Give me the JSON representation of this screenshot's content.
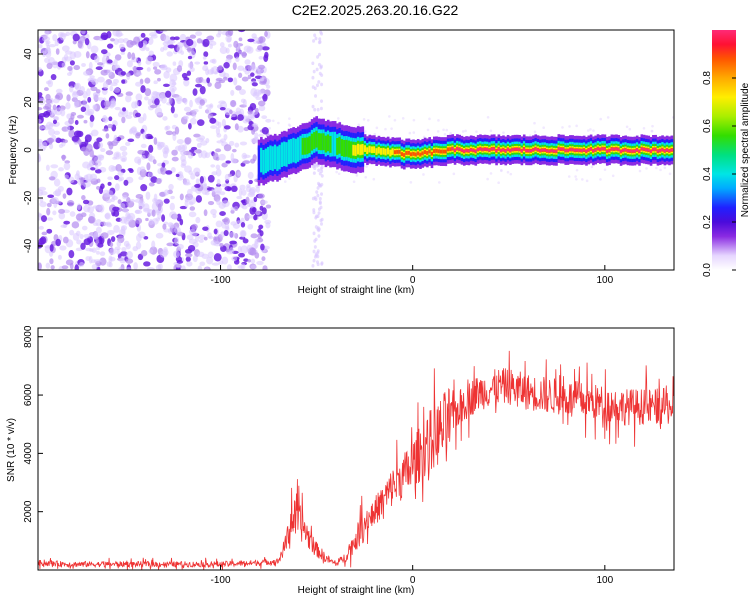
{
  "title": "C2E2.2025.263.20.16.G22",
  "colorbar": {
    "label": "Normalized spectral amplitude",
    "ticks": [
      "0.0",
      "0.2",
      "0.4",
      "0.6",
      "0.8"
    ],
    "tick_values": [
      0.0,
      0.2,
      0.4,
      0.6,
      0.8
    ],
    "range": [
      0.0,
      1.0
    ]
  },
  "chart_data": [
    {
      "type": "heatmap",
      "title": "",
      "xlabel": "Height of straight line (km)",
      "ylabel": "Frequency (Hz)",
      "xlim": [
        -195,
        136
      ],
      "ylim": [
        -50,
        50
      ],
      "xticks": [
        -100,
        0,
        100
      ],
      "xtick_labels": [
        "-100",
        "0",
        "100"
      ],
      "yticks": [
        -40,
        -20,
        0,
        20,
        40
      ],
      "ytick_labels": [
        "-40",
        "-20",
        "0",
        "20",
        "40"
      ],
      "description_series": [
        {
          "name": "noise region",
          "x_range": [
            -195,
            -75
          ],
          "freq_range": [
            -50,
            50
          ],
          "amplitude_range": [
            0.0,
            0.15
          ]
        },
        {
          "name": "sparse column",
          "x_range": [
            -52,
            -47
          ],
          "freq_range": [
            -50,
            50
          ],
          "amplitude_range": [
            0.0,
            0.1
          ]
        },
        {
          "name": "ridge",
          "x": [
            -80,
            -70,
            -60,
            -50,
            -40,
            -30,
            -20,
            -10,
            0,
            10,
            20,
            40,
            60,
            80,
            100,
            120,
            136
          ],
          "freq": [
            -5,
            -3,
            0,
            4,
            2,
            0,
            0,
            -1,
            -2,
            -1,
            0,
            0,
            0,
            0,
            0,
            0,
            0
          ],
          "amplitude": [
            0.35,
            0.45,
            0.5,
            0.55,
            0.5,
            0.7,
            0.8,
            0.85,
            0.85,
            0.9,
            0.95,
            1.0,
            1.0,
            1.0,
            1.0,
            1.0,
            1.0
          ]
        }
      ]
    },
    {
      "type": "line",
      "title": "",
      "xlabel": "Height of straight line (km)",
      "ylabel": "SNR (10 * v/v)",
      "xlim": [
        -195,
        136
      ],
      "ylim": [
        0,
        8300
      ],
      "xticks": [
        -100,
        0,
        100
      ],
      "xtick_labels": [
        "-100",
        "0",
        "100"
      ],
      "yticks": [
        2000,
        4000,
        6000,
        8000
      ],
      "ytick_labels": [
        "2000",
        "4000",
        "6000",
        "8000"
      ],
      "color": "#ee3333",
      "series": [
        {
          "name": "SNR",
          "x": [
            -195,
            -180,
            -160,
            -140,
            -120,
            -100,
            -80,
            -70,
            -66,
            -63,
            -60,
            -57,
            -54,
            -50,
            -45,
            -40,
            -35,
            -30,
            -25,
            -20,
            -15,
            -10,
            -5,
            0,
            5,
            10,
            15,
            20,
            25,
            30,
            35,
            40,
            45,
            50,
            55,
            60,
            70,
            80,
            90,
            100,
            110,
            120,
            130,
            136
          ],
          "y": [
            250,
            200,
            200,
            200,
            200,
            200,
            250,
            300,
            900,
            1800,
            1700,
            1500,
            1100,
            700,
            400,
            200,
            450,
            1000,
            1600,
            2000,
            2400,
            2900,
            3200,
            3600,
            4100,
            4500,
            4800,
            5200,
            5600,
            5900,
            6100,
            6200,
            6300,
            6300,
            6200,
            6100,
            6000,
            5900,
            5800,
            5700,
            5600,
            5600,
            5600,
            5600
          ]
        }
      ]
    }
  ]
}
